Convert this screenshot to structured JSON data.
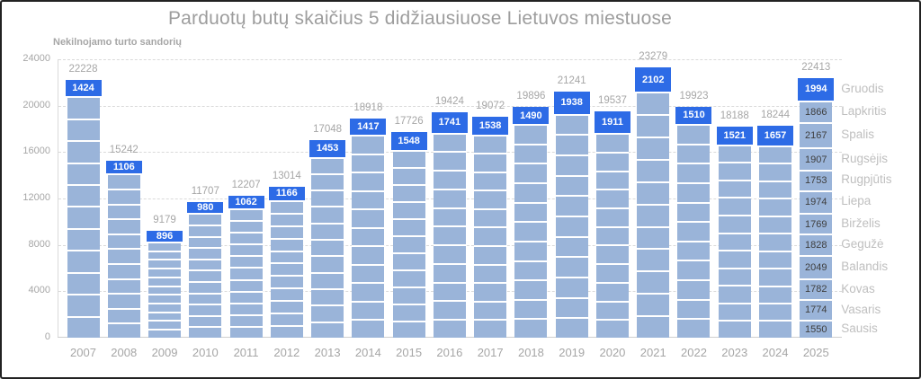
{
  "title": "Parduotų butų skaičius 5 didžiausiuose Lietuvos miestuose",
  "subtitle": "Nekilnojamo turto sandorių",
  "colors": {
    "bar_fill": "#9ab4d9",
    "highlight_fill": "#2d6be6",
    "grid_line": "#dadada",
    "axis_text": "#a6a6a6",
    "title_text": "#9d9d9d",
    "total_label": "#a6a6a6",
    "month_label": "#bfbfbf",
    "segment_value_text": "#3e3e3e"
  },
  "chart_data": {
    "type": "bar",
    "stacked": true,
    "title": "Parduotų butų skaičius 5 didžiausiuose Lietuvos miestuose",
    "subtitle": "Nekilnojamo turto sandorių",
    "ylim": [
      0,
      24000
    ],
    "y_ticks": [
      0,
      4000,
      8000,
      12000,
      16000,
      20000,
      24000
    ],
    "grid": "dashed-horizontal",
    "categories": [
      "2007",
      "2008",
      "2009",
      "2010",
      "2011",
      "2012",
      "2013",
      "2014",
      "2015",
      "2016",
      "2017",
      "2018",
      "2019",
      "2020",
      "2021",
      "2022",
      "2023",
      "2024",
      "2025"
    ],
    "totals": [
      22228,
      15242,
      9179,
      11707,
      12207,
      13014,
      17048,
      18918,
      17726,
      19424,
      19072,
      19896,
      21241,
      19537,
      23279,
      19923,
      18188,
      18244,
      22413
    ],
    "highlight_month": "Gruodis",
    "highlight_values": [
      1424,
      1106,
      896,
      980,
      1062,
      1166,
      1453,
      1417,
      1548,
      1741,
      1538,
      1490,
      1938,
      1911,
      2102,
      1510,
      1521,
      1657,
      1994
    ],
    "detail_year": "2025",
    "detail_months_top_to_bottom": [
      {
        "month": "Gruodis",
        "value": 1994,
        "highlighted": true
      },
      {
        "month": "Lapkritis",
        "value": 1866,
        "highlighted": false
      },
      {
        "month": "Spalis",
        "value": 2167,
        "highlighted": false
      },
      {
        "month": "Rugsėjis",
        "value": 1907,
        "highlighted": false
      },
      {
        "month": "Rugpjūtis",
        "value": 1753,
        "highlighted": false
      },
      {
        "month": "Liepa",
        "value": 1974,
        "highlighted": false
      },
      {
        "month": "Birželis",
        "value": 1769,
        "highlighted": false
      },
      {
        "month": "Gegužė",
        "value": 1828,
        "highlighted": false
      },
      {
        "month": "Balandis",
        "value": 2049,
        "highlighted": false
      },
      {
        "month": "Kovas",
        "value": 1782,
        "highlighted": false
      },
      {
        "month": "Vasaris",
        "value": 1774,
        "highlighted": false
      },
      {
        "month": "Sausis",
        "value": 1550,
        "highlighted": false
      }
    ]
  }
}
